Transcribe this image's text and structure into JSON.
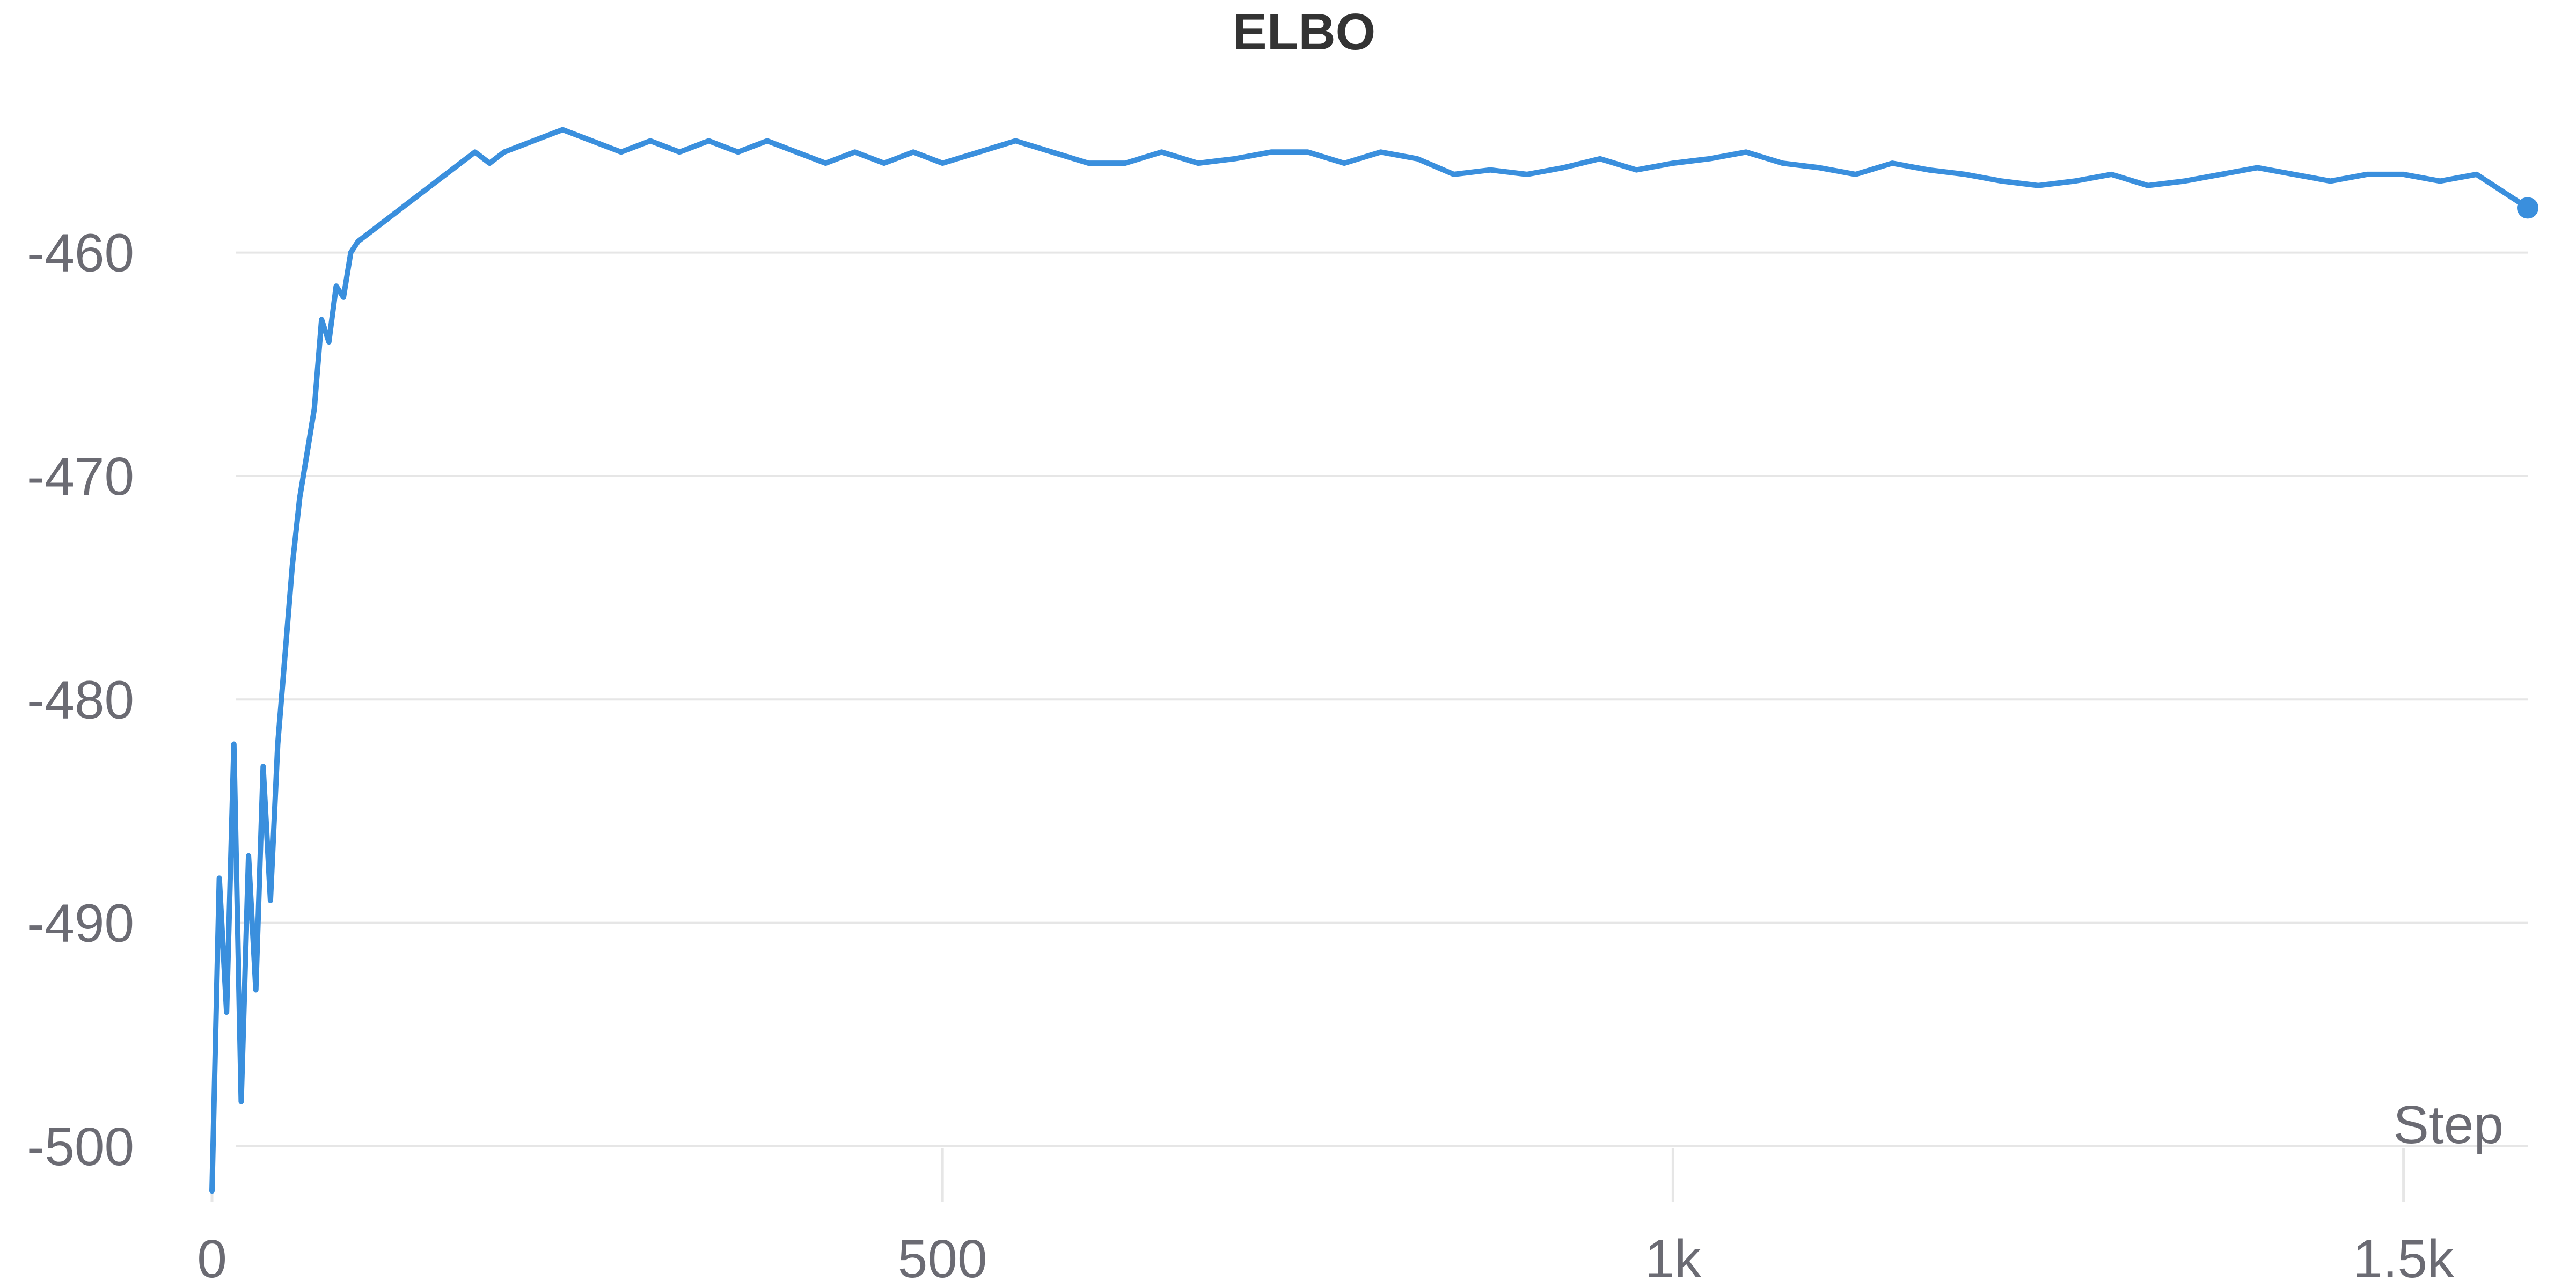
{
  "chart_data": {
    "type": "line",
    "title": "ELBO",
    "xlabel": "Step",
    "ylabel": "",
    "xlim": [
      0,
      1585
    ],
    "ylim": [
      -502.5,
      -453.5
    ],
    "x_ticks": [
      0,
      500,
      1000,
      1500
    ],
    "x_tick_labels": [
      "0",
      "500",
      "1k",
      "1.5k"
    ],
    "y_ticks": [
      -460,
      -470,
      -480,
      -490,
      -500
    ],
    "y_tick_labels": [
      "-460",
      "-470",
      "-480",
      "-490",
      "-500"
    ],
    "grid": true,
    "legend": "none",
    "colors": {
      "line": "#3a8fdd",
      "grid": "#e6e6e6",
      "tick": "#6b6b73",
      "title": "#333333"
    },
    "series": [
      {
        "x": [
          0,
          5,
          10,
          15,
          20,
          25,
          30,
          35,
          40,
          45,
          50,
          55,
          60,
          65,
          70,
          75,
          80,
          85,
          90,
          95,
          100,
          110,
          120,
          130,
          140,
          150,
          160,
          170,
          180,
          190,
          200,
          220,
          240,
          260,
          280,
          300,
          320,
          340,
          360,
          380,
          400,
          420,
          440,
          460,
          480,
          500,
          525,
          550,
          575,
          600,
          625,
          650,
          675,
          700,
          725,
          750,
          775,
          800,
          825,
          850,
          875,
          900,
          925,
          950,
          975,
          1000,
          1025,
          1050,
          1075,
          1100,
          1125,
          1150,
          1175,
          1200,
          1225,
          1250,
          1275,
          1300,
          1325,
          1350,
          1375,
          1400,
          1425,
          1450,
          1475,
          1500,
          1525,
          1550,
          1585
        ],
        "values": [
          -502,
          -488,
          -494,
          -482,
          -498,
          -487,
          -493,
          -483,
          -489,
          -482,
          -478,
          -474,
          -471,
          -469,
          -467,
          -463,
          -464,
          -461.5,
          -462,
          -460,
          -459.5,
          -459,
          -458.5,
          -458,
          -457.5,
          -457,
          -456.5,
          -456,
          -455.5,
          -456,
          -455.5,
          -455,
          -454.5,
          -455,
          -455.5,
          -455,
          -455.5,
          -455,
          -455.5,
          -455,
          -455.5,
          -456,
          -455.5,
          -456,
          -455.5,
          -456,
          -455.5,
          -455,
          -455.5,
          -456,
          -456,
          -455.5,
          -456,
          -455.8,
          -455.5,
          -455.5,
          -456,
          -455.5,
          -455.8,
          -456.5,
          -456.3,
          -456.5,
          -456.2,
          -455.8,
          -456.3,
          -456,
          -455.8,
          -455.5,
          -456,
          -456.2,
          -456.5,
          -456,
          -456.3,
          -456.5,
          -456.8,
          -457,
          -456.8,
          -456.5,
          -457,
          -456.8,
          -456.5,
          -456.2,
          -456.5,
          -456.8,
          -456.5,
          -456.5,
          -456.8,
          -456.5,
          -458
        ]
      }
    ]
  }
}
